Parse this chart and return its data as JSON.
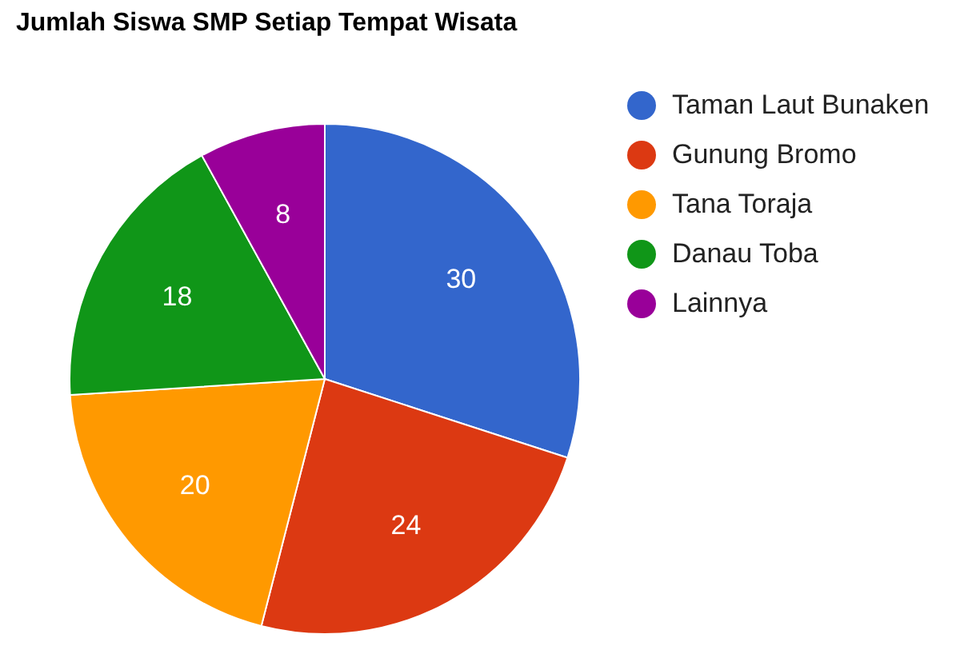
{
  "chart_data": {
    "type": "pie",
    "title": "Jumlah Siswa SMP Setiap Tempat Wisata",
    "categories": [
      "Taman Laut Bunaken",
      "Gunung Bromo",
      "Tana Toraja",
      "Danau Toba",
      "Lainnya"
    ],
    "values": [
      30,
      24,
      20,
      18,
      8
    ],
    "colors": [
      "#3366cc",
      "#dc3912",
      "#ff9900",
      "#109618",
      "#990099"
    ],
    "data_labels": true,
    "legend": "right"
  }
}
